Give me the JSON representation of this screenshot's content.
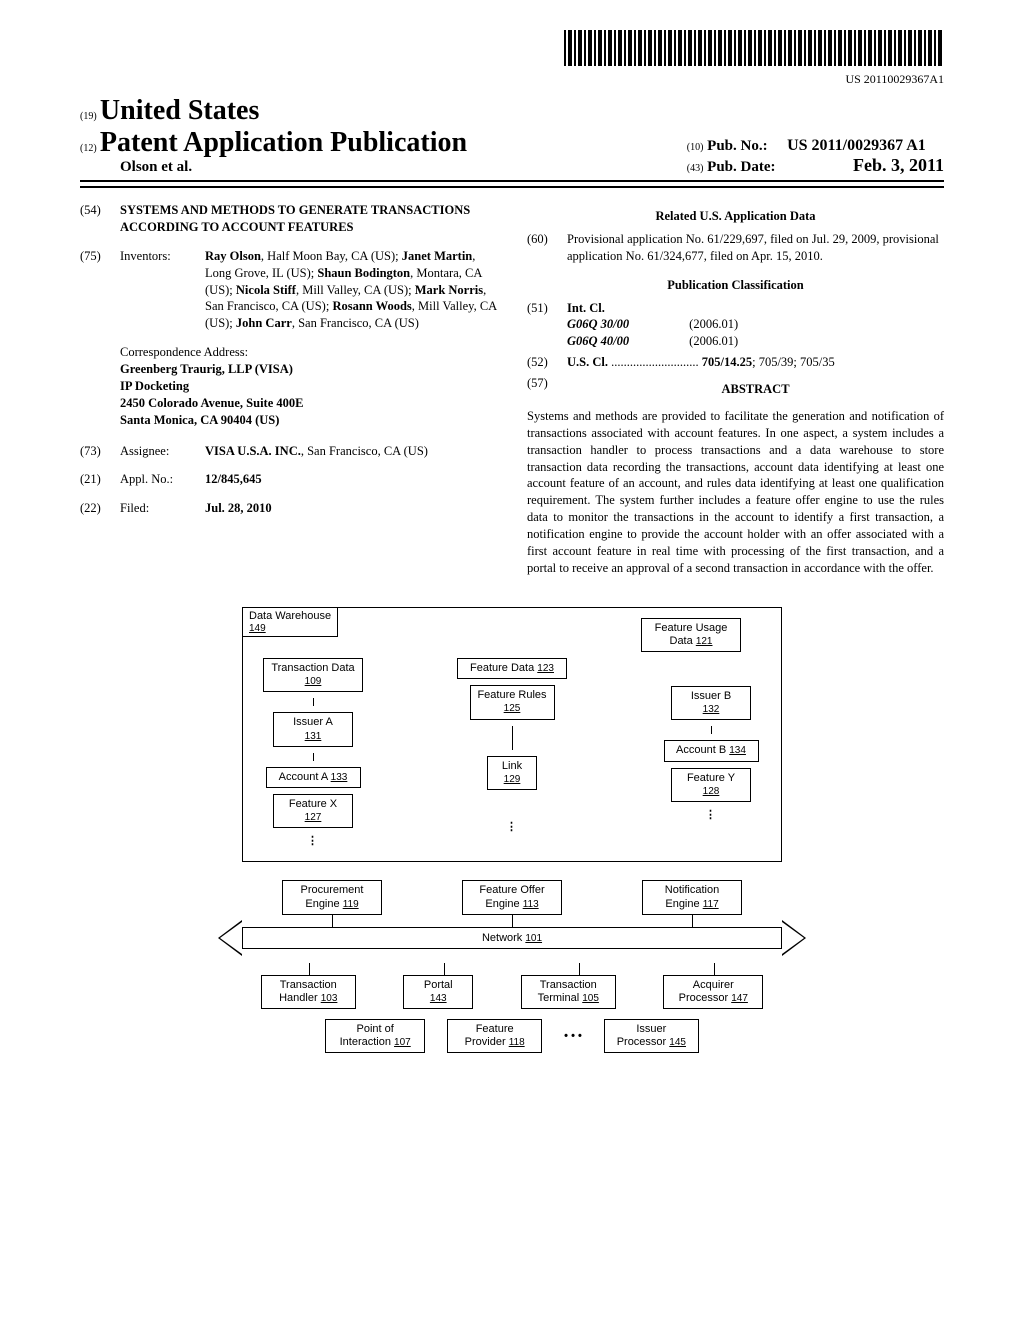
{
  "barcode_text": "US 20110029367A1",
  "header": {
    "num19": "(19)",
    "country": "United States",
    "num12": "(12)",
    "doc_type": "Patent Application Publication",
    "authors_line": "Olson et al.",
    "num10": "(10)",
    "pub_no_label": "Pub. No.:",
    "pub_no": "US 2011/0029367 A1",
    "num43": "(43)",
    "pub_date_label": "Pub. Date:",
    "pub_date": "Feb. 3, 2011"
  },
  "left": {
    "f54": {
      "num": "(54)",
      "text": "SYSTEMS AND METHODS TO GENERATE TRANSACTIONS ACCORDING TO ACCOUNT FEATURES"
    },
    "f75": {
      "num": "(75)",
      "label": "Inventors:",
      "text": "Ray Olson, Half Moon Bay, CA (US); Janet Martin, Long Grove, IL (US); Shaun Bodington, Montara, CA (US); Nicola Stiff, Mill Valley, CA (US); Mark Norris, San Francisco, CA (US); Rosann Woods, Mill Valley, CA (US); John Carr, San Francisco, CA (US)"
    },
    "correspondence_label": "Correspondence Address:",
    "correspondence": "Greenberg Traurig, LLP (VISA)\nIP Docketing\n2450 Colorado Avenue, Suite 400E\nSanta Monica, CA 90404 (US)",
    "f73": {
      "num": "(73)",
      "label": "Assignee:",
      "text": "VISA U.S.A. INC., San Francisco, CA (US)"
    },
    "f21": {
      "num": "(21)",
      "label": "Appl. No.:",
      "text": "12/845,645"
    },
    "f22": {
      "num": "(22)",
      "label": "Filed:",
      "text": "Jul. 28, 2010"
    }
  },
  "right": {
    "related_head": "Related U.S. Application Data",
    "f60": {
      "num": "(60)",
      "text": "Provisional application No. 61/229,697, filed on Jul. 29, 2009, provisional application No. 61/324,677, filed on Apr. 15, 2010."
    },
    "class_head": "Publication Classification",
    "f51": {
      "num": "(51)",
      "label": "Int. Cl.",
      "rows": [
        {
          "code": "G06Q 30/00",
          "ver": "(2006.01)"
        },
        {
          "code": "G06Q 40/00",
          "ver": "(2006.01)"
        }
      ]
    },
    "f52": {
      "num": "(52)",
      "label": "U.S. Cl.",
      "dots": "............................",
      "val": "705/14.25; 705/39; 705/35"
    },
    "f57": {
      "num": "(57)",
      "head": "ABSTRACT"
    },
    "abstract": "Systems and methods are provided to facilitate the generation and notification of transactions associated with account features. In one aspect, a system includes a transaction handler to process transactions and a data warehouse to store transaction data recording the transactions, account data identifying at least one account feature of an account, and rules data identifying at least one qualification requirement. The system further includes a feature offer engine to use the rules data to monitor the transactions in the account to identify a first transaction, a notification engine to provide the account holder with an offer associated with a first account feature in real time with processing of the first transaction, and a portal to receive an approval of a second transaction in accordance with the offer."
  },
  "figure": {
    "data_warehouse": {
      "label": "Data Warehouse",
      "ref": "149"
    },
    "feature_usage": {
      "label": "Feature Usage Data",
      "ref": "121"
    },
    "transaction_data": {
      "label": "Transaction Data",
      "ref": "109"
    },
    "feature_data": {
      "label": "Feature Data",
      "ref": "123"
    },
    "feature_rules": {
      "label": "Feature Rules",
      "ref": "125"
    },
    "issuer_a": {
      "label": "Issuer A",
      "ref": "131"
    },
    "issuer_b": {
      "label": "Issuer B",
      "ref": "132"
    },
    "account_a": {
      "label": "Account A",
      "ref": "133"
    },
    "account_b": {
      "label": "Account B",
      "ref": "134"
    },
    "link": {
      "label": "Link",
      "ref": "129"
    },
    "feature_x": {
      "label": "Feature X",
      "ref": "127"
    },
    "feature_y": {
      "label": "Feature Y",
      "ref": "128"
    },
    "procurement": {
      "label": "Procurement Engine",
      "ref": "119"
    },
    "feature_offer": {
      "label": "Feature Offer Engine",
      "ref": "113"
    },
    "notification": {
      "label": "Notification Engine",
      "ref": "117"
    },
    "network": {
      "label": "Network",
      "ref": "101"
    },
    "transaction_handler": {
      "label": "Transaction Handler",
      "ref": "103"
    },
    "portal": {
      "label": "Portal",
      "ref": "143"
    },
    "transaction_terminal": {
      "label": "Transaction Terminal",
      "ref": "105"
    },
    "acquirer": {
      "label": "Acquirer Processor",
      "ref": "147"
    },
    "poi": {
      "label": "Point of Interaction",
      "ref": "107"
    },
    "feature_provider": {
      "label": "Feature Provider",
      "ref": "118"
    },
    "issuer_proc": {
      "label": "Issuer Processor",
      "ref": "145"
    },
    "ellipsis": "• • •"
  }
}
